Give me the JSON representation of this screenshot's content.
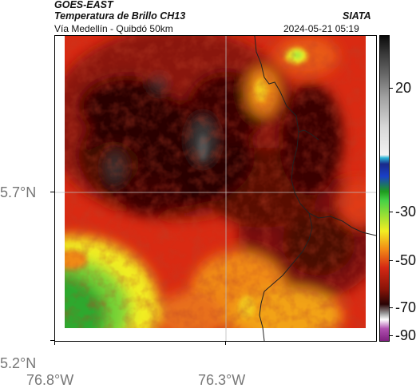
{
  "header": {
    "satellite": "GOES-EAST",
    "product": "Temperatura de Brillo CH13",
    "source": "SIATA",
    "route": "Vía Medellín - Quibdó 50km",
    "timestamp": "2024-05-21 05:19"
  },
  "colorbar": {
    "labels": [
      "20",
      "-30",
      "-50",
      "-70",
      "-90"
    ],
    "colors": [
      "#0a0a0a",
      "#a0a0a0",
      "#2ab4d6",
      "#1a3fc8",
      "#46d146",
      "#f2ee22",
      "#f28a16",
      "#d42814",
      "#2a0404",
      "#ffffff",
      "#802080"
    ]
  },
  "axes": {
    "lat_labels": [
      "5.7°N",
      "5.2°N"
    ],
    "lon_labels": [
      "76.8°W",
      "76.3°W"
    ]
  },
  "map": {
    "gridline_color": "#bbbbbb",
    "border_line_color": "#222222"
  }
}
